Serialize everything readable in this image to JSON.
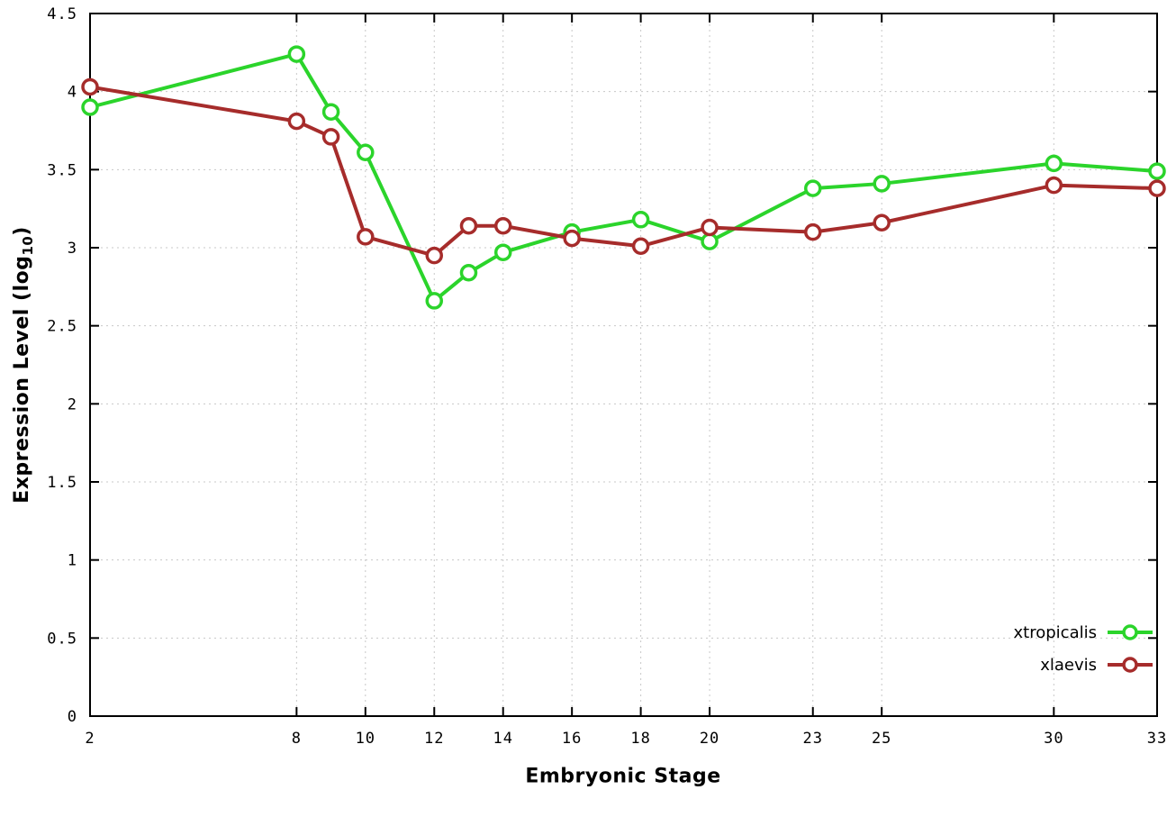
{
  "chart_data": {
    "type": "line",
    "title": "",
    "xlabel": "Embryonic Stage",
    "ylabel_prefix": "Expression Level (log",
    "ylabel_sub": "10",
    "ylabel_suffix": ")",
    "x": [
      2,
      8,
      9,
      10,
      12,
      13,
      14,
      16,
      18,
      20,
      23,
      25,
      30,
      33
    ],
    "series": [
      {
        "name": "xtropicalis",
        "color": "#2bd42b",
        "values": [
          3.9,
          4.24,
          3.87,
          3.61,
          2.66,
          2.84,
          2.97,
          3.1,
          3.18,
          3.04,
          3.38,
          3.41,
          3.54,
          3.49
        ]
      },
      {
        "name": "xlaevis",
        "color": "#a62c2b",
        "values": [
          4.03,
          3.81,
          3.71,
          3.07,
          2.95,
          3.14,
          3.14,
          3.06,
          3.01,
          3.13,
          3.1,
          3.16,
          3.4,
          3.38
        ]
      }
    ],
    "xlim": [
      2,
      33
    ],
    "ylim": [
      0,
      4.5
    ],
    "xticks": [
      2,
      8,
      10,
      12,
      14,
      16,
      18,
      20,
      23,
      25,
      30,
      33
    ],
    "xtick_labels": [
      "2",
      "8",
      "10",
      "12",
      "14",
      "16",
      "18",
      "20",
      "23",
      "25",
      "30",
      "33"
    ],
    "yticks": [
      0,
      0.5,
      1,
      1.5,
      2,
      2.5,
      3,
      3.5,
      4,
      4.5
    ],
    "ytick_labels": [
      "0",
      "0.5",
      "1",
      "1.5",
      "2",
      "2.5",
      "3",
      "3.5",
      "4",
      "4.5"
    ],
    "grid": true,
    "legend_position": "bottom-right",
    "background": "#ffffff",
    "axis_color": "#000000",
    "grid_color": "#c8c8c8"
  }
}
